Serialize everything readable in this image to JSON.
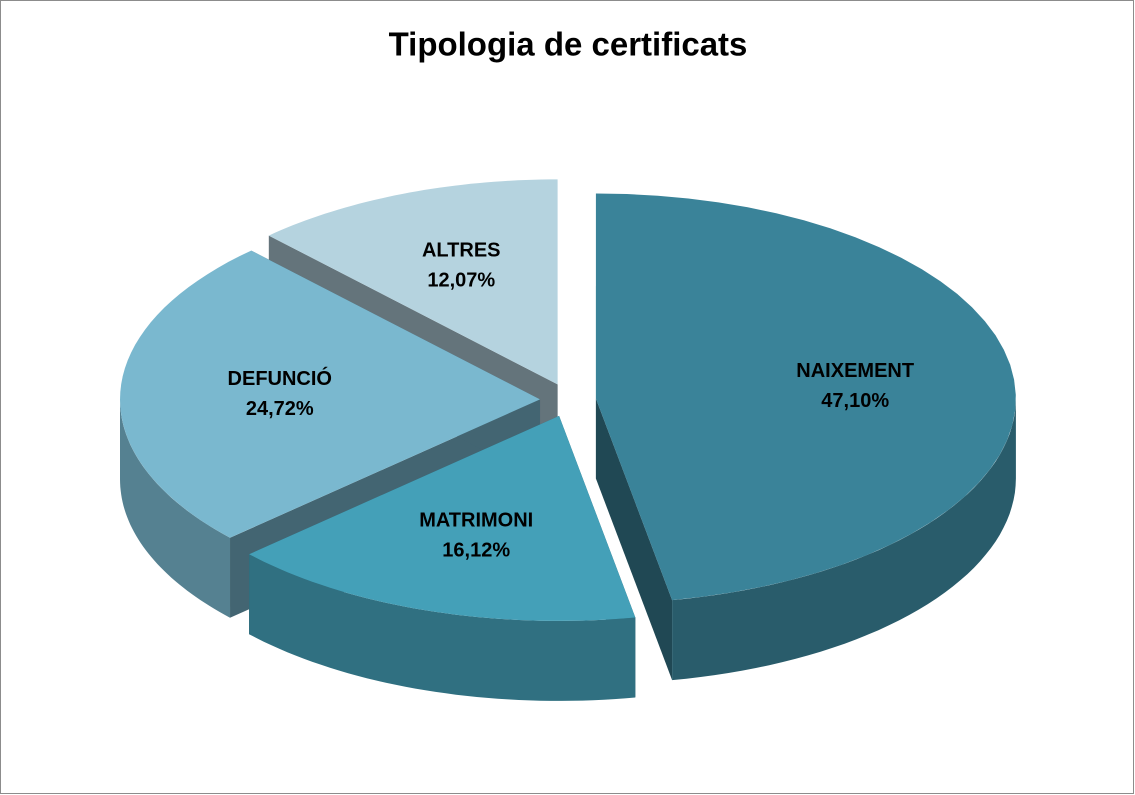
{
  "chart_data": {
    "type": "pie",
    "title": "Tipologia de certificats",
    "categories": [
      "NAIXEMENT",
      "MATRIMONI",
      "DEFUNCIÓ",
      "ALTRES"
    ],
    "values": [
      47.1,
      16.12,
      24.72,
      12.07
    ],
    "value_labels": [
      "47,10%",
      "16,12%",
      "24,72%",
      "12,07%"
    ],
    "colors": [
      "#3a8399",
      "#44a0b8",
      "#7ab8cf",
      "#b5d3df"
    ]
  }
}
